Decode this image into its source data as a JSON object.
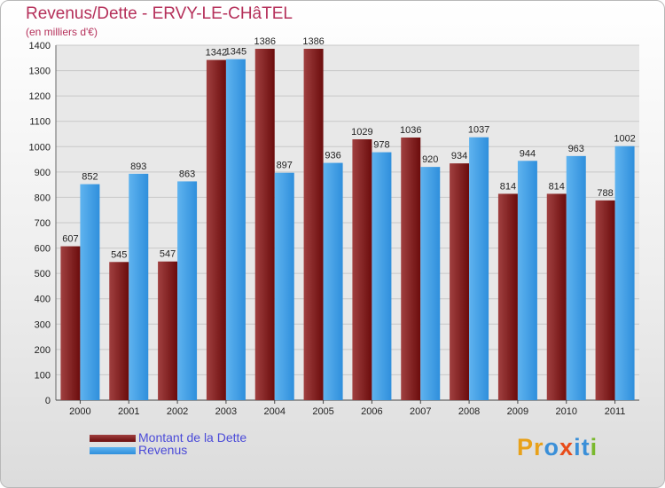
{
  "title": "Revenus/Dette - ERVY-LE-CHâTEL",
  "subtitle": "(en milliers d'€)",
  "legend": {
    "debt_label": "Montant de la Dette",
    "revenue_label": "Revenus"
  },
  "brand": {
    "logo_letters": [
      "P",
      "r",
      "o",
      "x",
      "i",
      "t",
      "i"
    ],
    "logo_colors": [
      "#e8a11a",
      "#e8a11a",
      "#3a8fd8",
      "#e84c1a",
      "#3a8fd8",
      "#3a8fd8",
      "#7ab92e"
    ]
  },
  "colors": {
    "debt": "#6b0c0c",
    "debt_light": "#a04040",
    "revenue": "#2f8fdc",
    "revenue_light": "#5fb3ef",
    "axis_text": "#222222",
    "grid": "#c8c8c8"
  },
  "chart_data": {
    "type": "bar",
    "categories": [
      "2000",
      "2001",
      "2002",
      "2003",
      "2004",
      "2005",
      "2006",
      "2007",
      "2008",
      "2009",
      "2010",
      "2011"
    ],
    "series": [
      {
        "name": "Montant de la Dette",
        "values": [
          607,
          545,
          547,
          1342,
          1386,
          1386,
          1029,
          1036,
          934,
          814,
          814,
          788
        ]
      },
      {
        "name": "Revenus",
        "values": [
          852,
          893,
          863,
          1345,
          897,
          936,
          978,
          920,
          1037,
          944,
          963,
          1002
        ]
      }
    ],
    "yticks": [
      0,
      100,
      200,
      300,
      400,
      500,
      600,
      700,
      800,
      900,
      1000,
      1100,
      1200,
      1300,
      1400
    ],
    "ylim": [
      0,
      1400
    ],
    "grid": true,
    "legend_position": "bottom-left"
  }
}
